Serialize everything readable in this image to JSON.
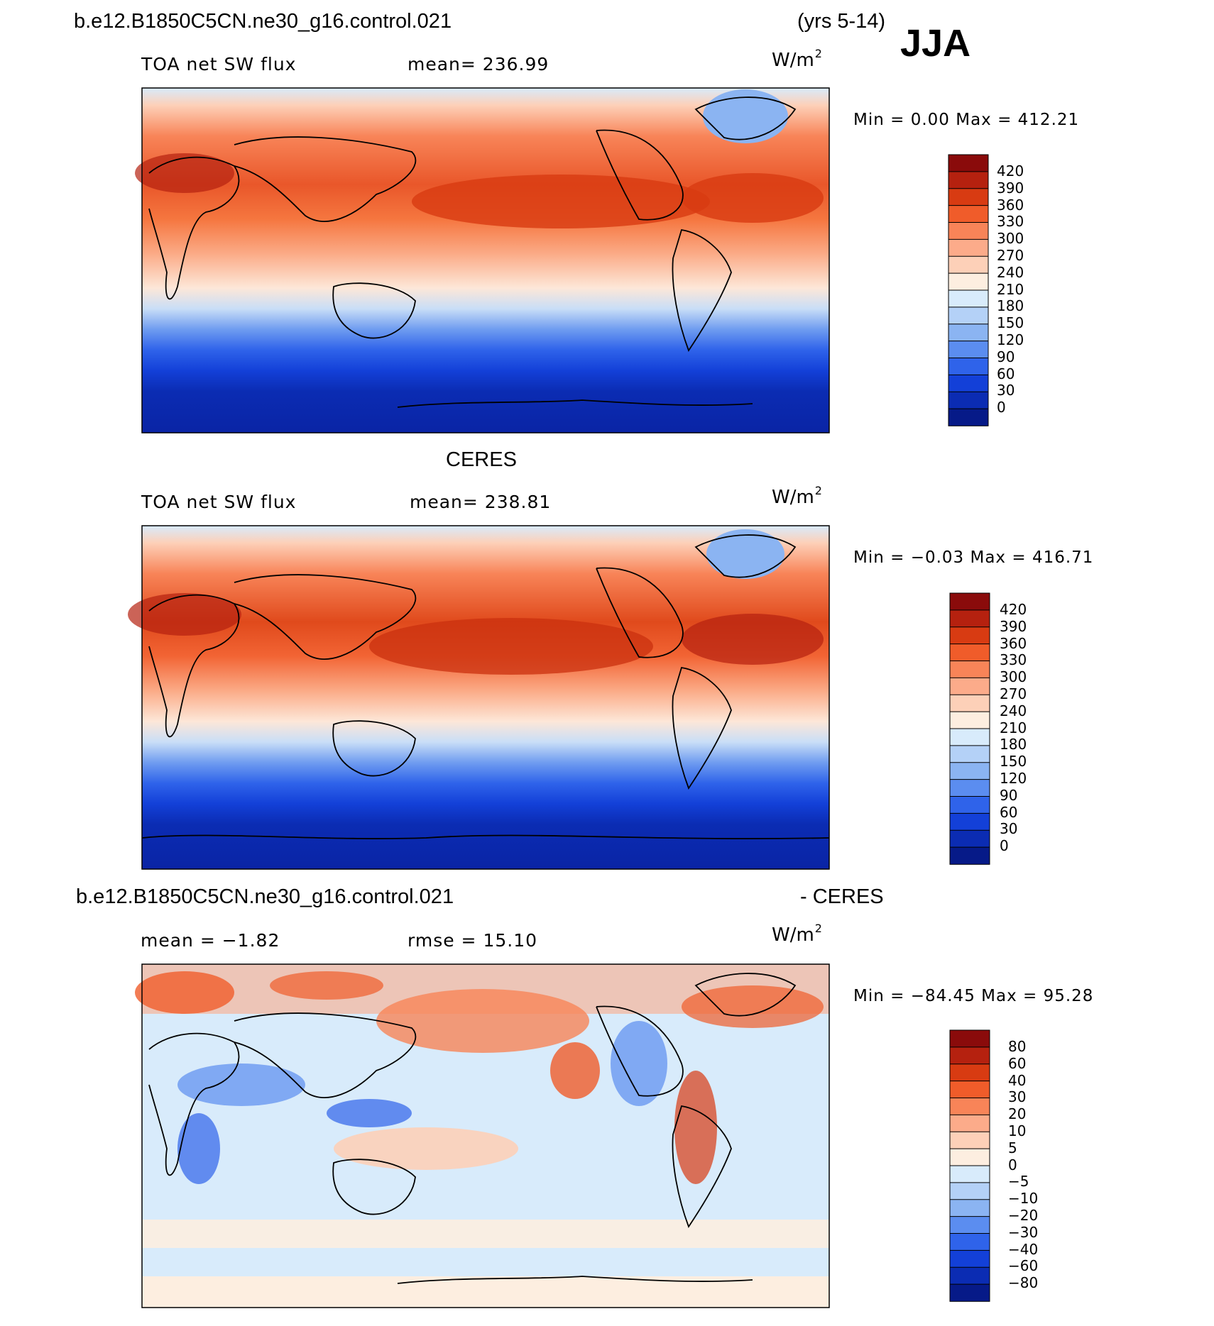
{
  "header": {
    "case_name": "b.e12.B1850C5CN.ne30_g16.control.021",
    "years": "(yrs 5-14)",
    "season": "JJA"
  },
  "panels": [
    {
      "id": "model",
      "title": "",
      "left_label": "TOA net SW flux",
      "center_label": "mean=  236.99",
      "units_base": "W/m",
      "units_exp": "2",
      "minmax": "Min =    0.00 Max  =  412.21",
      "colorbar_labels": [
        "420",
        "390",
        "360",
        "330",
        "300",
        "270",
        "240",
        "210",
        "180",
        "150",
        "120",
        "90",
        "60",
        "30",
        "0"
      ]
    },
    {
      "id": "obs",
      "title": "CERES",
      "left_label": "TOA net SW flux",
      "center_label": "mean=  238.81",
      "units_base": "W/m",
      "units_exp": "2",
      "minmax": "Min =  −0.03 Max  =  416.71",
      "colorbar_labels": [
        "420",
        "390",
        "360",
        "330",
        "300",
        "270",
        "240",
        "210",
        "180",
        "150",
        "120",
        "90",
        "60",
        "30",
        "0"
      ]
    },
    {
      "id": "diff",
      "title_left": "b.e12.B1850C5CN.ne30_g16.control.021",
      "title_right": "- CERES",
      "left_label": "mean =   −1.82",
      "center_label": "rmse =   15.10",
      "units_base": "W/m",
      "units_exp": "2",
      "minmax": "Min  = −84.45  Max  =   95.28",
      "colorbar_labels": [
        "80",
        "60",
        "40",
        "30",
        "20",
        "10",
        "5",
        "0",
        "−5",
        "−10",
        "−20",
        "−30",
        "−40",
        "−60",
        "−80"
      ]
    }
  ],
  "colors": {
    "abs_scale": [
      "#8a0b0b",
      "#b5210f",
      "#d83b12",
      "#f05c2a",
      "#f88458",
      "#fcab8a",
      "#fdd0b8",
      "#fdeee0",
      "#d8ebfb",
      "#b4d1f7",
      "#8bb4f2",
      "#5b8df0",
      "#2f63ea",
      "#1340d8",
      "#0b2cb3",
      "#061a88"
    ],
    "diff_scale": [
      "#8a0b0b",
      "#b5210f",
      "#d83b12",
      "#f05c2a",
      "#f88458",
      "#fcab8a",
      "#fdd0b8",
      "#fdeee0",
      "#d8ebfb",
      "#b4d1f7",
      "#8bb4f2",
      "#5b8df0",
      "#2f63ea",
      "#1340d8",
      "#0b2cb3",
      "#061a88"
    ]
  }
}
